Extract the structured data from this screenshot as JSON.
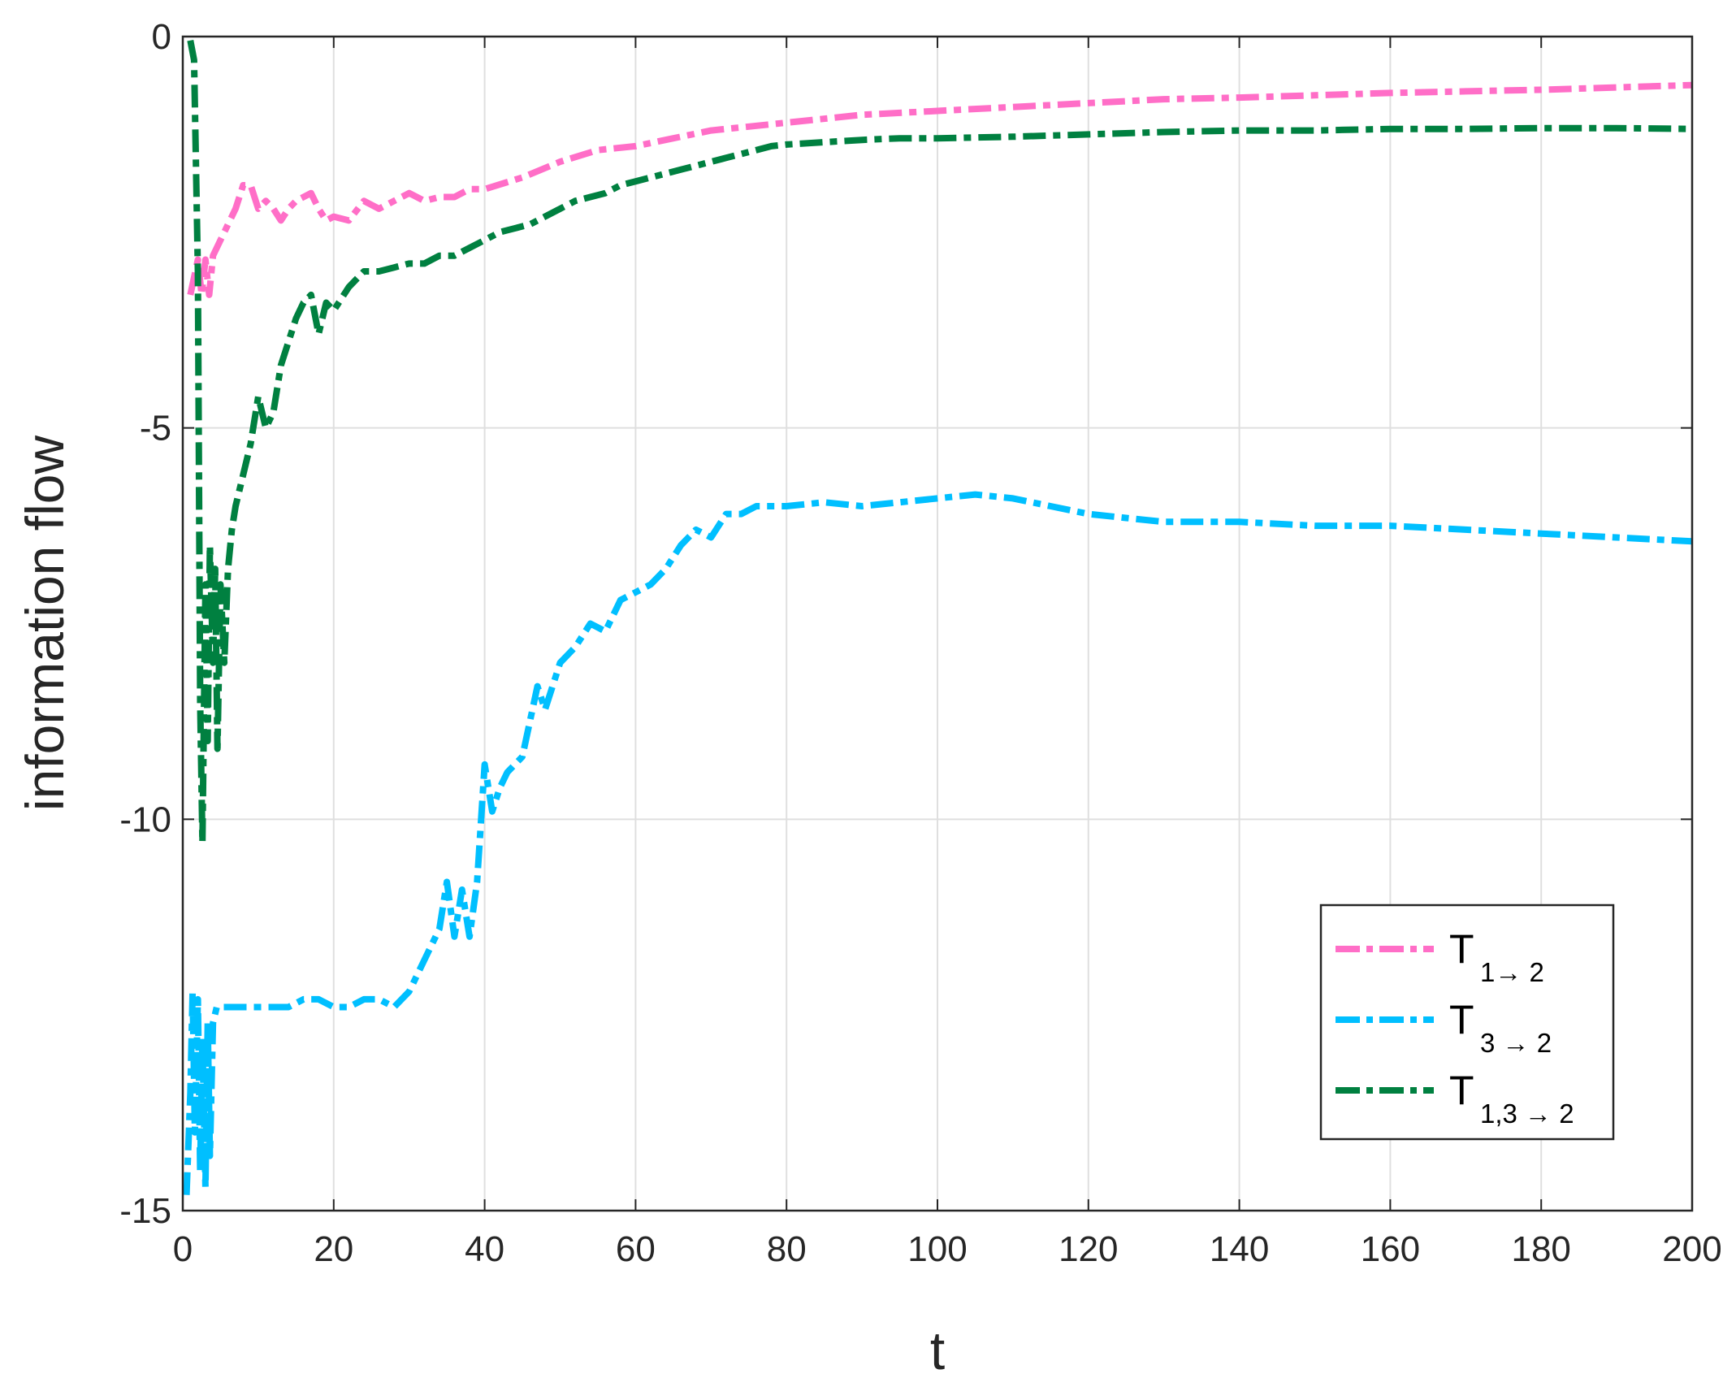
{
  "chart_data": {
    "type": "line",
    "xlabel": "t",
    "ylabel": "information flow",
    "xlim": [
      0,
      200
    ],
    "ylim": [
      -15,
      0
    ],
    "xticks": [
      0,
      20,
      40,
      60,
      80,
      100,
      120,
      140,
      160,
      180,
      200
    ],
    "yticks": [
      -15,
      -10,
      -5,
      0
    ],
    "xtick_labels": [
      "0",
      "20",
      "40",
      "60",
      "80",
      "100",
      "120",
      "140",
      "160",
      "180",
      "200"
    ],
    "ytick_labels": [
      "-15",
      "-10",
      "-5",
      "0"
    ],
    "grid": true,
    "legend": {
      "position": "bottom-right",
      "entries": [
        {
          "main": "T",
          "sub": "1→ 2"
        },
        {
          "main": "T",
          "sub": "3 → 2"
        },
        {
          "main": "T",
          "sub": "1,3 → 2"
        }
      ]
    },
    "series": [
      {
        "color": "#ff6ec7",
        "style": "dash-dot",
        "x": [
          1,
          2,
          2.5,
          3,
          3.5,
          4,
          5,
          6,
          7,
          8,
          9,
          10,
          11,
          12,
          13,
          14,
          15,
          16,
          17,
          18,
          19,
          20,
          22,
          24,
          26,
          28,
          30,
          32,
          34,
          36,
          38,
          40,
          45,
          50,
          55,
          60,
          65,
          70,
          75,
          80,
          90,
          100,
          110,
          120,
          130,
          140,
          150,
          160,
          170,
          180,
          190,
          200
        ],
        "y": [
          -3.3,
          -2.85,
          -3.3,
          -2.85,
          -3.3,
          -2.8,
          -2.6,
          -2.4,
          -2.2,
          -1.9,
          -1.9,
          -2.2,
          -2.1,
          -2.2,
          -2.35,
          -2.2,
          -2.1,
          -2.05,
          -2.0,
          -2.2,
          -2.35,
          -2.3,
          -2.35,
          -2.1,
          -2.2,
          -2.1,
          -2.0,
          -2.1,
          -2.05,
          -2.05,
          -1.95,
          -1.95,
          -1.8,
          -1.6,
          -1.45,
          -1.4,
          -1.3,
          -1.2,
          -1.15,
          -1.1,
          -1.0,
          -0.95,
          -0.9,
          -0.85,
          -0.8,
          -0.78,
          -0.75,
          -0.72,
          -0.7,
          -0.68,
          -0.65,
          -0.62
        ]
      },
      {
        "color": "#00bfff",
        "style": "dash-dot",
        "x": [
          0.5,
          1,
          1.3,
          1.6,
          2,
          2.3,
          2.6,
          3,
          3.3,
          3.6,
          4,
          4.5,
          5,
          8,
          10,
          12,
          14,
          16,
          18,
          20,
          22,
          24,
          26,
          28,
          30,
          32,
          34,
          35,
          36,
          37,
          38,
          39,
          40,
          41,
          42,
          43,
          45,
          47,
          48,
          50,
          52,
          54,
          56,
          58,
          60,
          62,
          64,
          66,
          68,
          70,
          72,
          74,
          76,
          78,
          80,
          85,
          90,
          95,
          100,
          105,
          110,
          115,
          120,
          125,
          130,
          140,
          150,
          160,
          170,
          180,
          190,
          200
        ],
        "y": [
          -14.8,
          -13.5,
          -12.2,
          -14.0,
          -12.3,
          -14.5,
          -12.8,
          -14.7,
          -12.6,
          -14.3,
          -12.6,
          -12.4,
          -12.4,
          -12.4,
          -12.4,
          -12.4,
          -12.4,
          -12.3,
          -12.3,
          -12.4,
          -12.4,
          -12.3,
          -12.3,
          -12.4,
          -12.2,
          -11.8,
          -11.4,
          -10.8,
          -11.5,
          -10.9,
          -11.5,
          -10.8,
          -9.3,
          -9.9,
          -9.6,
          -9.4,
          -9.2,
          -8.3,
          -8.6,
          -8.0,
          -7.8,
          -7.5,
          -7.6,
          -7.2,
          -7.1,
          -7.0,
          -6.8,
          -6.5,
          -6.3,
          -6.4,
          -6.1,
          -6.1,
          -6.0,
          -6.0,
          -6.0,
          -5.95,
          -6.0,
          -5.95,
          -5.9,
          -5.85,
          -5.9,
          -6.0,
          -6.1,
          -6.15,
          -6.2,
          -6.2,
          -6.25,
          -6.25,
          -6.3,
          -6.35,
          -6.4,
          -6.45
        ]
      },
      {
        "color": "#008040",
        "style": "dash-dot",
        "x": [
          1,
          1.5,
          2,
          2.3,
          2.6,
          3,
          3.3,
          3.6,
          4,
          4.3,
          4.6,
          5,
          5.5,
          6,
          6.5,
          7,
          8,
          9,
          10,
          11,
          12,
          13,
          14,
          15,
          16,
          17,
          18,
          19,
          20,
          22,
          24,
          26,
          28,
          30,
          32,
          34,
          36,
          38,
          40,
          42,
          44,
          46,
          48,
          50,
          52,
          54,
          56,
          58,
          60,
          62,
          64,
          66,
          68,
          70,
          72,
          74,
          76,
          78,
          80,
          85,
          90,
          95,
          100,
          110,
          120,
          130,
          140,
          150,
          160,
          170,
          180,
          190,
          200
        ],
        "y": [
          -0.05,
          -0.3,
          -3.0,
          -8.5,
          -10.3,
          -7.0,
          -9.0,
          -6.5,
          -8.0,
          -6.8,
          -9.1,
          -7.0,
          -8.0,
          -6.8,
          -6.3,
          -6.0,
          -5.6,
          -5.2,
          -4.6,
          -5.0,
          -4.8,
          -4.2,
          -3.9,
          -3.6,
          -3.4,
          -3.3,
          -3.8,
          -3.4,
          -3.5,
          -3.2,
          -3.0,
          -3.0,
          -2.95,
          -2.9,
          -2.9,
          -2.8,
          -2.8,
          -2.7,
          -2.6,
          -2.5,
          -2.45,
          -2.4,
          -2.3,
          -2.2,
          -2.1,
          -2.05,
          -2.0,
          -1.9,
          -1.85,
          -1.8,
          -1.75,
          -1.7,
          -1.65,
          -1.6,
          -1.55,
          -1.5,
          -1.45,
          -1.4,
          -1.38,
          -1.35,
          -1.32,
          -1.3,
          -1.3,
          -1.28,
          -1.25,
          -1.22,
          -1.2,
          -1.2,
          -1.18,
          -1.18,
          -1.17,
          -1.17,
          -1.18
        ]
      }
    ]
  }
}
